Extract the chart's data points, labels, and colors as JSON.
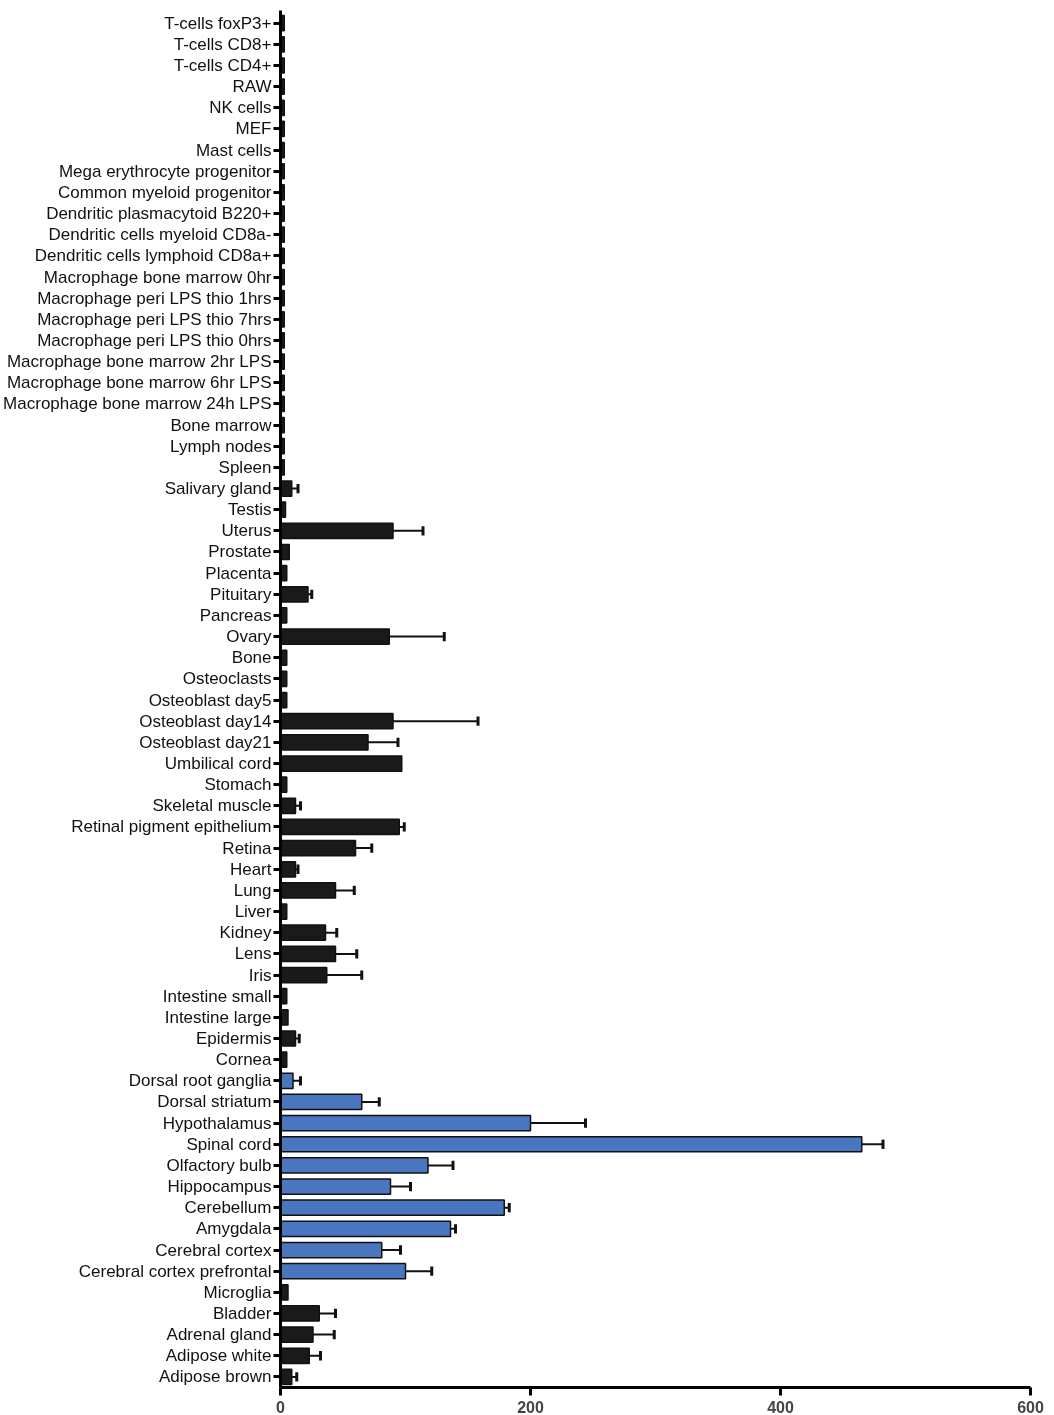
{
  "chart_data": {
    "type": "bar",
    "orientation": "horizontal",
    "categories": [
      "T-cells foxP3+",
      "T-cells CD8+",
      "T-cells CD4+",
      "RAW",
      "NK cells",
      "MEF",
      "Mast cells",
      "Mega erythrocyte progenitor",
      "Common myeloid progenitor",
      "Dendritic plasmacytoid B220+",
      "Dendritic cells myeloid CD8a-",
      "Dendritic cells lymphoid CD8a+",
      "Macrophage bone marrow 0hr",
      "Macrophage peri LPS thio 1hrs",
      "Macrophage peri LPS thio 7hrs",
      "Macrophage peri LPS thio 0hrs",
      "Macrophage bone marrow 2hr LPS",
      "Macrophage bone marrow 6hr LPS",
      "Macrophage bone marrow 24h LPS",
      "Bone marrow",
      "Lymph nodes",
      "Spleen",
      "Salivary gland",
      "Testis",
      "Uterus",
      "Prostate",
      "Placenta",
      "Pituitary",
      "Pancreas",
      "Ovary",
      "Bone",
      "Osteoclasts",
      "Osteoblast day5",
      "Osteoblast day14",
      "Osteoblast day21",
      "Umbilical cord",
      "Stomach",
      "Skeletal muscle",
      "Retinal pigment epithelium",
      "Retina",
      "Heart",
      "Lung",
      "Liver",
      "Kidney",
      "Lens",
      "Iris",
      "Intestine small",
      "Intestine large",
      "Epidermis",
      "Cornea",
      "Dorsal root ganglia",
      "Dorsal striatum",
      "Hypothalamus",
      "Spinal cord",
      "Olfactory bulb",
      "Hippocampus",
      "Cerebellum",
      "Amygdala",
      "Cerebral cortex",
      "Cerebral cortex prefrontal",
      "Microglia",
      "Bladder",
      "Adrenal gland",
      "Adipose white",
      "Adipose brown"
    ],
    "values": [
      3,
      3,
      3,
      3,
      3,
      3,
      3,
      3,
      3,
      3,
      3,
      3,
      3,
      3,
      3,
      3,
      3,
      3,
      3,
      3,
      3,
      3,
      9,
      4,
      90,
      7,
      5,
      22,
      5,
      87,
      5,
      5,
      5,
      90,
      70,
      97,
      5,
      12,
      95,
      60,
      12,
      44,
      5,
      36,
      44,
      37,
      5,
      6,
      12,
      5,
      10,
      65,
      200,
      465,
      118,
      88,
      179,
      136,
      81,
      100,
      6,
      31,
      26,
      23,
      9
    ],
    "errors": [
      null,
      null,
      null,
      null,
      null,
      null,
      null,
      null,
      null,
      null,
      null,
      null,
      null,
      null,
      null,
      null,
      null,
      null,
      null,
      null,
      null,
      null,
      [
        9,
        14
      ],
      null,
      [
        90,
        114
      ],
      null,
      null,
      [
        22,
        25
      ],
      null,
      [
        87,
        131
      ],
      null,
      null,
      null,
      [
        90,
        158
      ],
      [
        70,
        94
      ],
      null,
      null,
      [
        12,
        16
      ],
      [
        95,
        99
      ],
      [
        60,
        73
      ],
      [
        12,
        14
      ],
      [
        44,
        59
      ],
      null,
      [
        36,
        45
      ],
      [
        44,
        61
      ],
      [
        37,
        65
      ],
      null,
      null,
      [
        12,
        15
      ],
      null,
      [
        10,
        16
      ],
      [
        65,
        79
      ],
      [
        200,
        244
      ],
      [
        465,
        482
      ],
      [
        118,
        138
      ],
      [
        88,
        104
      ],
      [
        179,
        183
      ],
      [
        136,
        140
      ],
      [
        81,
        96
      ],
      [
        100,
        121
      ],
      null,
      [
        31,
        44
      ],
      [
        26,
        43
      ],
      [
        23,
        32
      ],
      [
        9,
        13
      ]
    ],
    "colors": [
      "#1a1a1a",
      "#1a1a1a",
      "#1a1a1a",
      "#1a1a1a",
      "#1a1a1a",
      "#1a1a1a",
      "#1a1a1a",
      "#1a1a1a",
      "#1a1a1a",
      "#1a1a1a",
      "#1a1a1a",
      "#1a1a1a",
      "#1a1a1a",
      "#1a1a1a",
      "#1a1a1a",
      "#1a1a1a",
      "#1a1a1a",
      "#1a1a1a",
      "#1a1a1a",
      "#1a1a1a",
      "#1a1a1a",
      "#1a1a1a",
      "#1a1a1a",
      "#1a1a1a",
      "#1a1a1a",
      "#1a1a1a",
      "#1a1a1a",
      "#1a1a1a",
      "#1a1a1a",
      "#1a1a1a",
      "#1a1a1a",
      "#1a1a1a",
      "#1a1a1a",
      "#1a1a1a",
      "#1a1a1a",
      "#1a1a1a",
      "#1a1a1a",
      "#1a1a1a",
      "#1a1a1a",
      "#1a1a1a",
      "#1a1a1a",
      "#1a1a1a",
      "#1a1a1a",
      "#1a1a1a",
      "#1a1a1a",
      "#1a1a1a",
      "#1a1a1a",
      "#1a1a1a",
      "#1a1a1a",
      "#1a1a1a",
      "#4a76c0",
      "#4a76c0",
      "#4a76c0",
      "#4a76c0",
      "#4a76c0",
      "#4a76c0",
      "#4a76c0",
      "#4a76c0",
      "#4a76c0",
      "#4a76c0",
      "#1a1a1a",
      "#1a1a1a",
      "#1a1a1a",
      "#1a1a1a",
      "#1a1a1a"
    ],
    "xlim": [
      0,
      600
    ],
    "xticks": [
      0,
      200,
      400,
      600
    ]
  }
}
